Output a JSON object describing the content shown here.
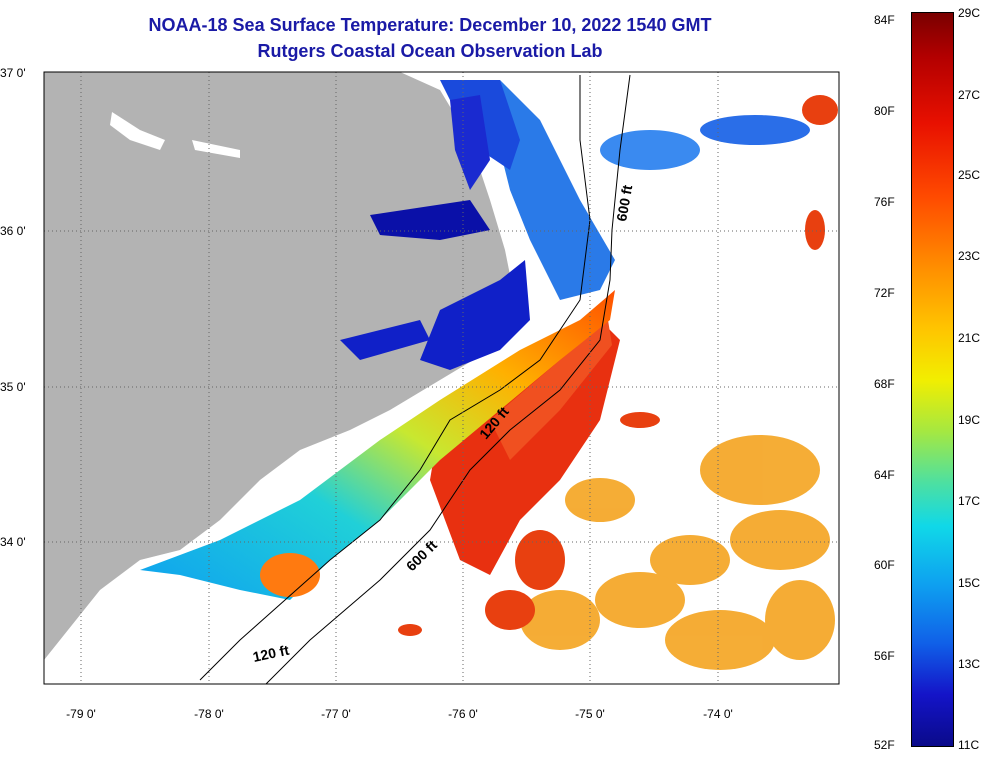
{
  "title": {
    "line1": "NOAA-18 Sea Surface Temperature:  December 10, 2022 1540 GMT",
    "line2": "Rutgers Coastal Ocean Observation Lab"
  },
  "axes": {
    "lat_labels": [
      "37 0'",
      "36 0'",
      "35 0'",
      "34 0'"
    ],
    "lon_labels": [
      "-79 0'",
      "-78 0'",
      "-77 0'",
      "-76 0'",
      "-75 0'",
      "-74 0'"
    ]
  },
  "isobath_labels": [
    "600 ft",
    "120 ft",
    "600 ft",
    "120 ft"
  ],
  "colorbar": {
    "fahrenheit_labels": [
      "84F",
      "80F",
      "76F",
      "72F",
      "68F",
      "64F",
      "60F",
      "56F",
      "52F"
    ],
    "celsius_labels": [
      "29C",
      "27C",
      "25C",
      "23C",
      "21C",
      "19C",
      "17C",
      "15C",
      "13C",
      "11C"
    ]
  },
  "colors": {
    "land": "#b3b3b3",
    "ocean_cloud": "#ffffff",
    "title": "#1a1aa6",
    "cold": "#0a0a9a",
    "warm": "#e82000"
  }
}
